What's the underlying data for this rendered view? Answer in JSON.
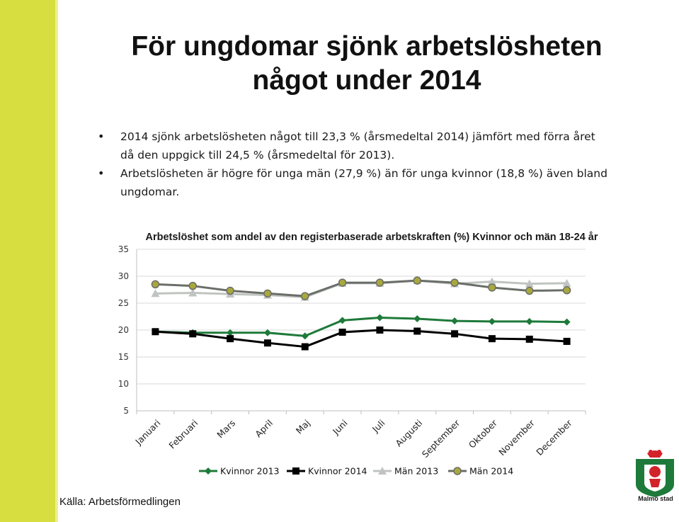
{
  "slide": {
    "title_line1": "För ungdomar sjönk arbetslösheten",
    "title_line2": "något under 2014",
    "bullets": [
      "2014 sjönk arbetslösheten något till 23,3 % (årsmedeltal 2014) jämfört med förra året då den uppgick till 24,5 % (årsmedeltal för 2013).",
      "Arbetslösheten är högre för unga män (27,9 %) än för unga kvinnor (18,8 %) även bland ungdomar."
    ],
    "source": "Källa: Arbetsförmedlingen",
    "logo_text": "Malmö stad"
  },
  "chart_data": {
    "type": "line",
    "title": "Arbetslöshet som andel av den registerbaserade arbetskraften (%) Kvinnor och män 18-24 år",
    "categories": [
      "Januari",
      "Februari",
      "Mars",
      "April",
      "Maj",
      "Juni",
      "Juli",
      "Augusti",
      "September",
      "Oktober",
      "November",
      "December"
    ],
    "ylim": [
      5,
      35
    ],
    "yticks": [
      5,
      10,
      15,
      20,
      25,
      30,
      35
    ],
    "grid": true,
    "legend_position": "bottom",
    "series": [
      {
        "name": "Kvinnor 2013",
        "color": "#1e7a3a",
        "marker": "diamond",
        "values": [
          19.7,
          19.5,
          19.5,
          19.5,
          18.9,
          21.8,
          22.3,
          22.1,
          21.7,
          21.6,
          21.6,
          21.5
        ]
      },
      {
        "name": "Kvinnor 2014",
        "color": "#000000",
        "marker": "square",
        "values": [
          19.7,
          19.3,
          18.4,
          17.6,
          16.9,
          19.6,
          20.0,
          19.8,
          19.3,
          18.4,
          18.3,
          17.9
        ]
      },
      {
        "name": "Män 2013",
        "color": "#c0c4c0",
        "marker": "triangle",
        "values": [
          26.8,
          26.9,
          26.7,
          26.5,
          26.1,
          28.7,
          28.7,
          29.2,
          28.6,
          29.0,
          28.6,
          28.7
        ]
      },
      {
        "name": "Män 2014",
        "color": "#6a6e69",
        "marker": "circle",
        "values": [
          28.5,
          28.2,
          27.3,
          26.8,
          26.3,
          28.8,
          28.8,
          29.2,
          28.8,
          27.9,
          27.3,
          27.4
        ]
      }
    ]
  }
}
